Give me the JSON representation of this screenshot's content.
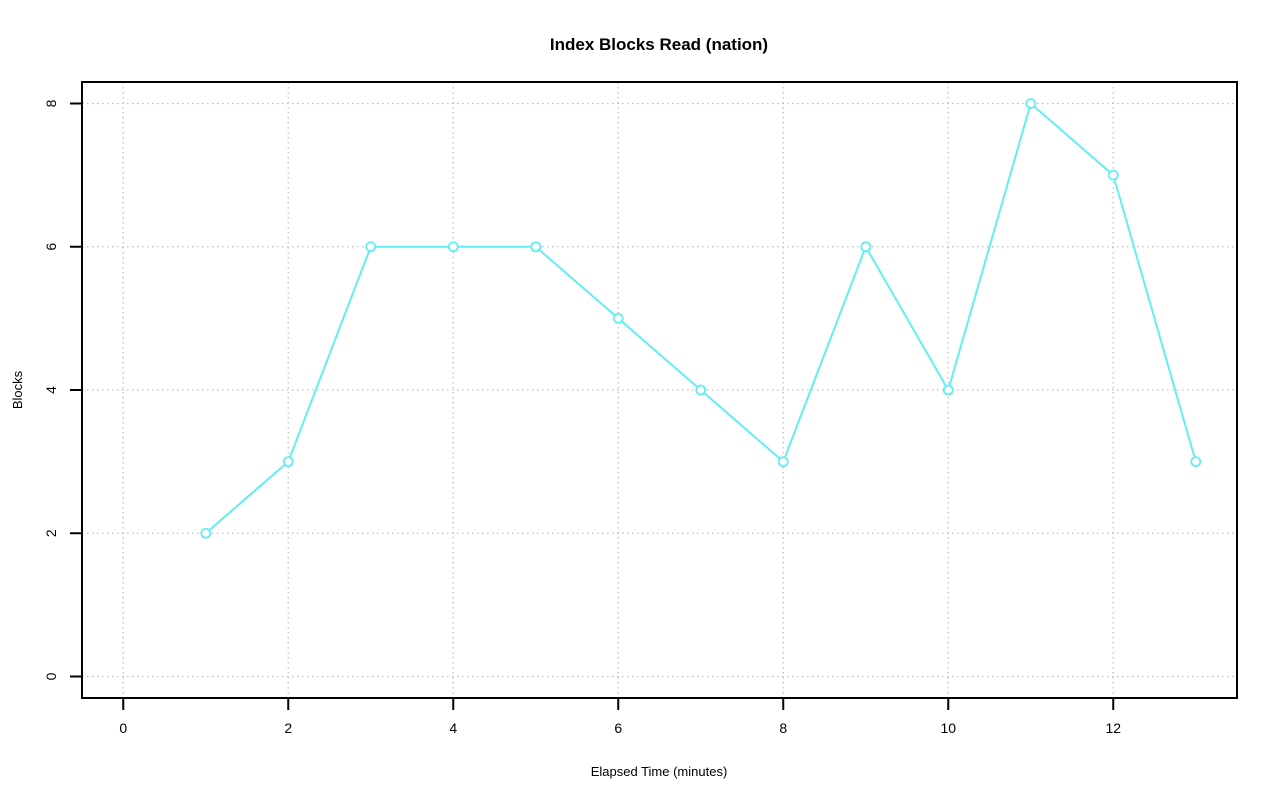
{
  "chart_data": {
    "type": "line",
    "title": "Index Blocks Read (nation)",
    "xlabel": "Elapsed Time (minutes)",
    "ylabel": "Blocks",
    "x": [
      1,
      2,
      3,
      4,
      5,
      6,
      7,
      8,
      9,
      10,
      11,
      12,
      13
    ],
    "y": [
      2,
      3,
      6,
      6,
      6,
      5,
      4,
      3,
      6,
      4,
      8,
      7,
      3
    ],
    "x_ticks": [
      0,
      2,
      4,
      6,
      8,
      10,
      12
    ],
    "y_ticks": [
      0,
      2,
      4,
      6,
      8
    ],
    "xlim": [
      -0.5,
      13.5
    ],
    "ylim": [
      -0.3,
      8.3
    ],
    "grid": "dotted",
    "legend_position": "none",
    "marker": "open-circle",
    "colors": {
      "series": "#62EFF2",
      "grid": "#bdbdbd",
      "axis": "#000000",
      "background": "#ffffff",
      "text": "#000000"
    }
  }
}
